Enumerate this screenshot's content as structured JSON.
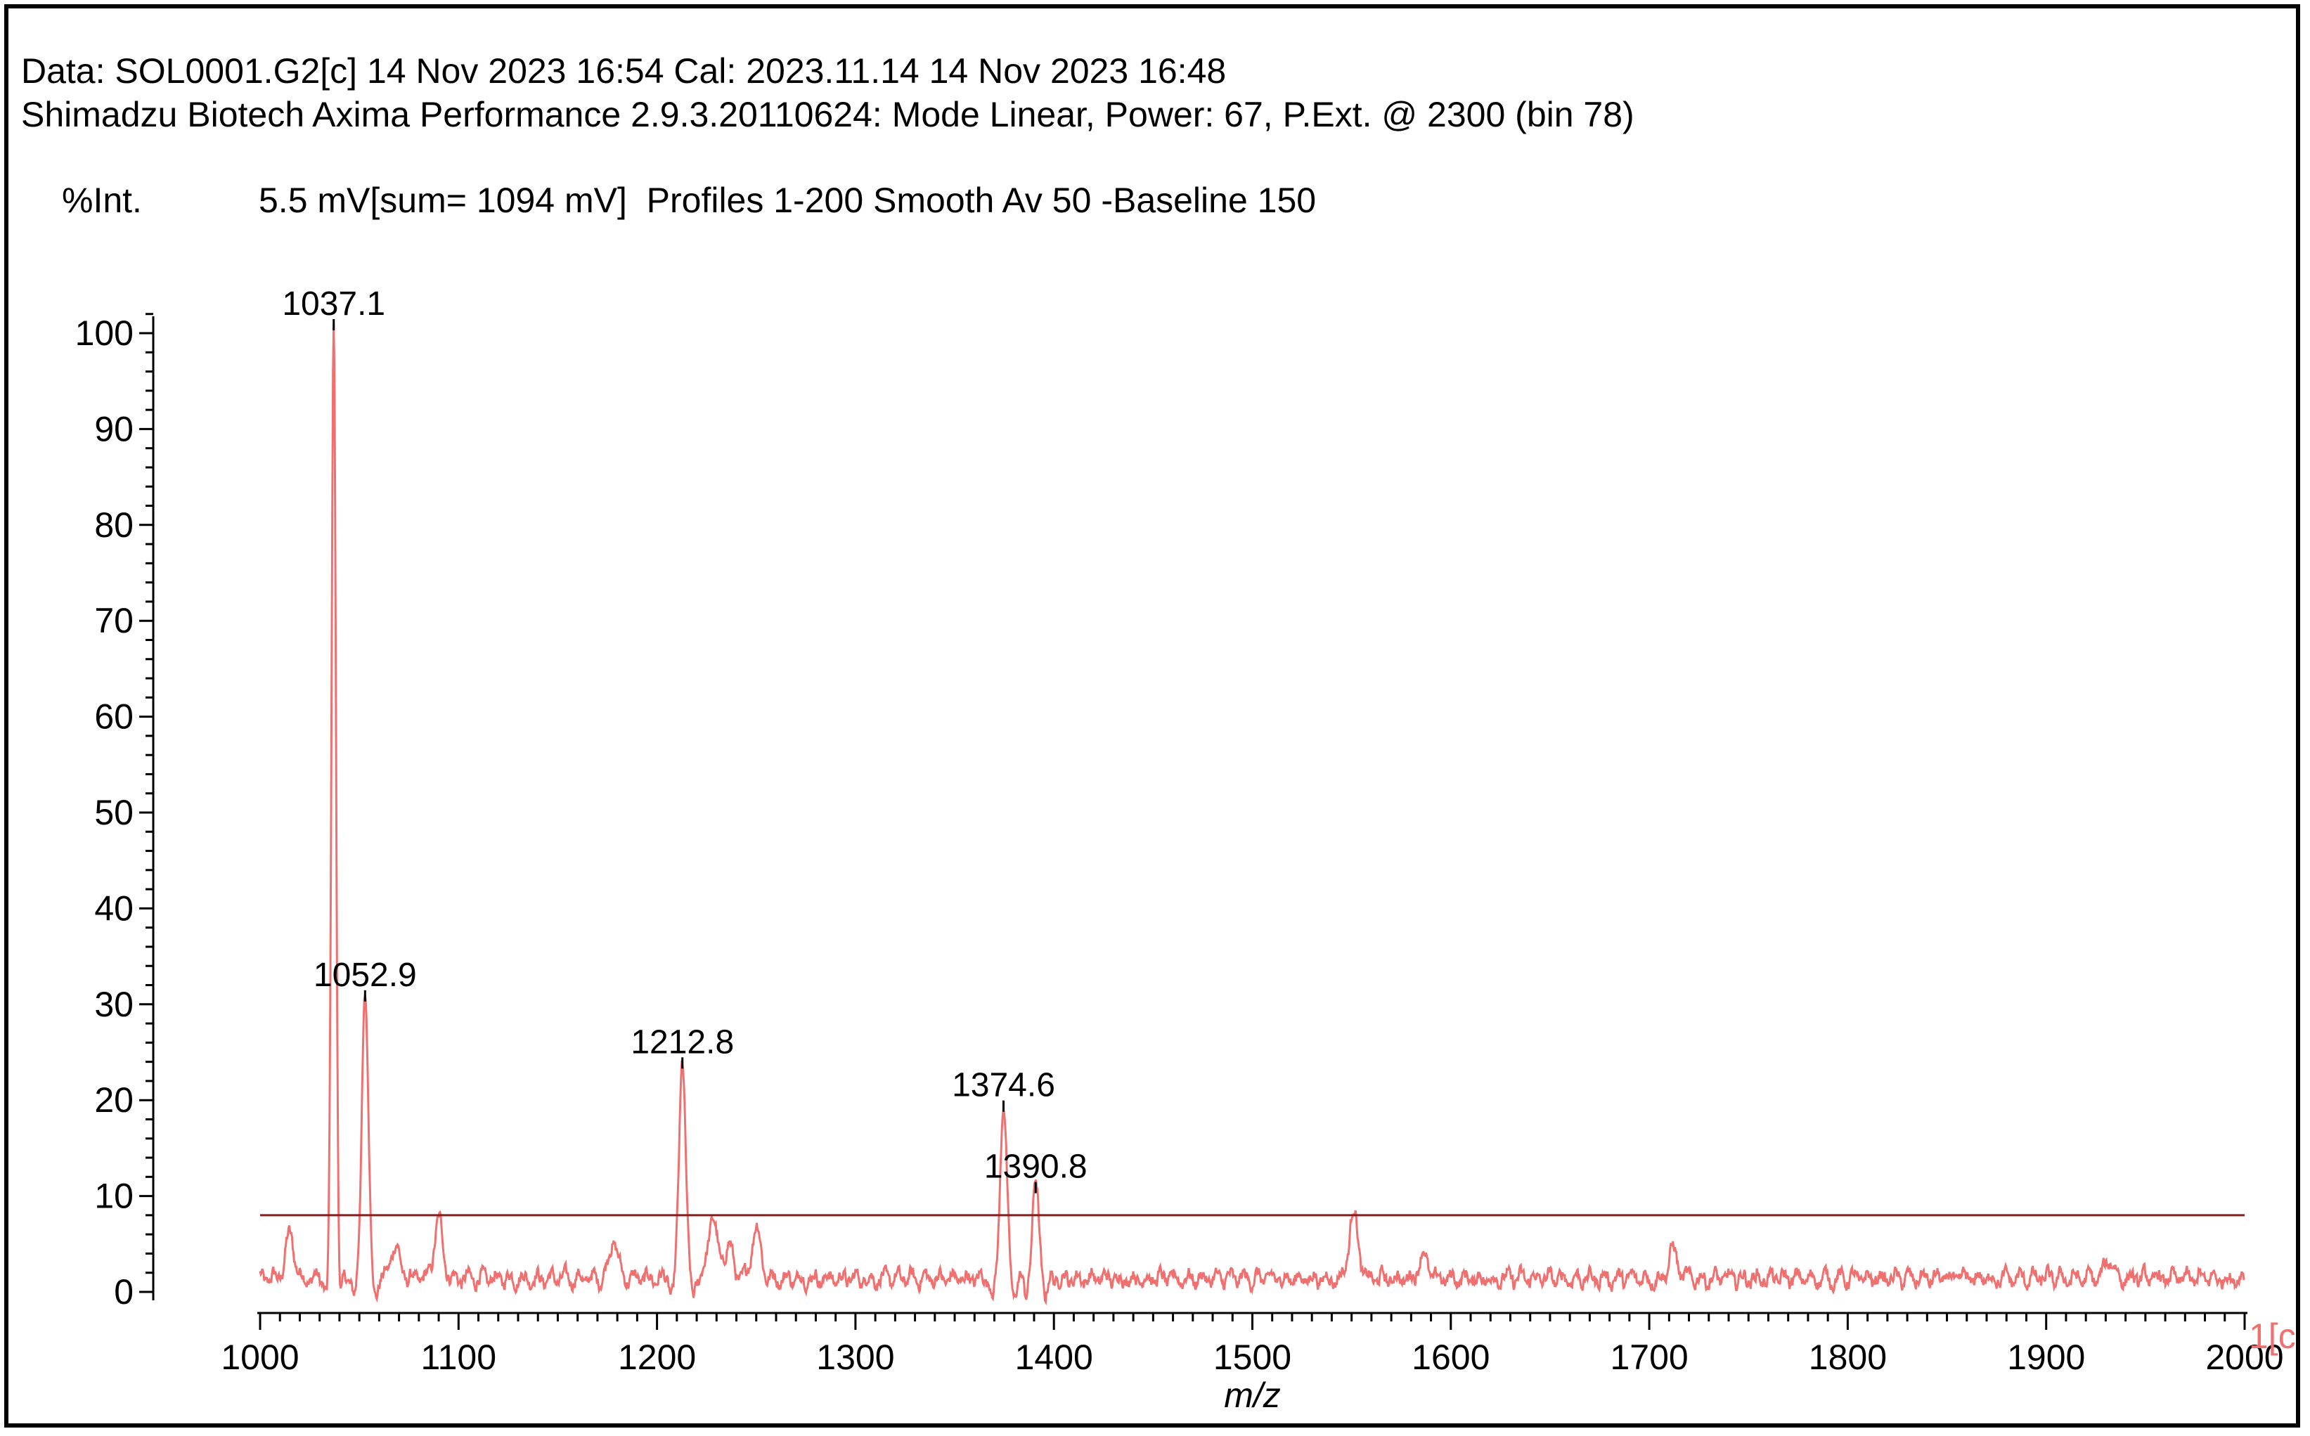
{
  "header": {
    "line1": "Data: SOL0001.G2[c] 14 Nov 2023 16:54 Cal: 2023.11.14 14 Nov 2023 16:48",
    "line2": "Shimadzu Biotech Axima Performance 2.9.3.20110624: Mode Linear, Power: 67, P.Ext. @ 2300 (bin 78)",
    "y_unit": "%Int.",
    "profile_info": "5.5 mV[sum= 1094 mV]  Profiles 1-200 Smooth Av 50 -Baseline 150"
  },
  "trace_tag": "1[c",
  "colors": {
    "spectrum": "#f07070",
    "threshold": "#8b1a1a",
    "axis": "#000000"
  },
  "chart_data": {
    "type": "line",
    "title": "",
    "xlabel": "m/z",
    "ylabel": "%Int.",
    "xlim": [
      1000,
      2000
    ],
    "ylim": [
      0,
      100
    ],
    "x_ticks": [
      1000,
      1100,
      1200,
      1300,
      1400,
      1500,
      1600,
      1700,
      1800,
      1900,
      2000
    ],
    "y_ticks": [
      0,
      10,
      20,
      30,
      40,
      50,
      60,
      70,
      80,
      90,
      100
    ],
    "threshold_level": 8,
    "peaks": [
      {
        "mz": 1037.1,
        "intensity": 100,
        "label": "1037.1"
      },
      {
        "mz": 1052.9,
        "intensity": 30,
        "label": "1052.9"
      },
      {
        "mz": 1212.8,
        "intensity": 23,
        "label": "1212.8"
      },
      {
        "mz": 1374.6,
        "intensity": 18.5,
        "label": "1374.6"
      },
      {
        "mz": 1390.8,
        "intensity": 10,
        "label": "1390.8"
      }
    ],
    "minor_peaks": [
      {
        "mz": 1015,
        "intensity": 4.5
      },
      {
        "mz": 1090,
        "intensity": 6
      },
      {
        "mz": 1068,
        "intensity": 3.5
      },
      {
        "mz": 1178,
        "intensity": 4
      },
      {
        "mz": 1228,
        "intensity": 6.5
      },
      {
        "mz": 1236,
        "intensity": 3.5
      },
      {
        "mz": 1250,
        "intensity": 5.5
      },
      {
        "mz": 1551,
        "intensity": 7
      },
      {
        "mz": 1586,
        "intensity": 2.5
      },
      {
        "mz": 1712,
        "intensity": 3
      },
      {
        "mz": 1932,
        "intensity": 2
      }
    ]
  }
}
